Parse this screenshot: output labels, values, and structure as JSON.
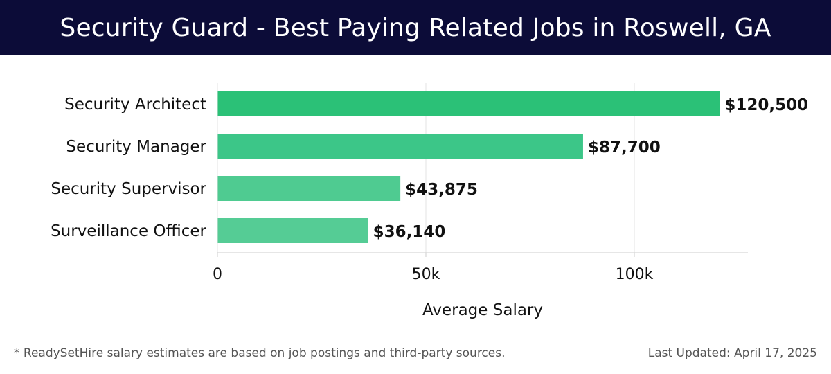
{
  "title": "Security Guard - Best Paying Related Jobs in Roswell, GA",
  "chart_data": {
    "type": "bar",
    "orientation": "horizontal",
    "categories": [
      "Security Architect",
      "Security Manager",
      "Security Supervisor",
      "Surveillance Officer"
    ],
    "values": [
      120500,
      87700,
      43875,
      36140
    ],
    "value_labels": [
      "$120,500",
      "$87,700",
      "$43,875",
      "$36,140"
    ],
    "bar_colors": [
      "#2bc177",
      "#3cc688",
      "#4fcb91",
      "#55cc95"
    ],
    "xlabel": "Average Salary",
    "ylabel": "",
    "xlim": [
      0,
      127000
    ],
    "x_ticks": [
      0,
      50000,
      100000
    ],
    "x_tick_labels": [
      "0",
      "50k",
      "100k"
    ],
    "grid": "vertical"
  },
  "footer": {
    "note": "* ReadySetHire salary estimates are based on job postings and third-party sources.",
    "updated": "Last Updated: April 17, 2025"
  },
  "colors": {
    "header_bg": "#0c0c38",
    "header_text": "#ffffff",
    "grid": "#e3e3e3",
    "axis": "#cccccc"
  }
}
